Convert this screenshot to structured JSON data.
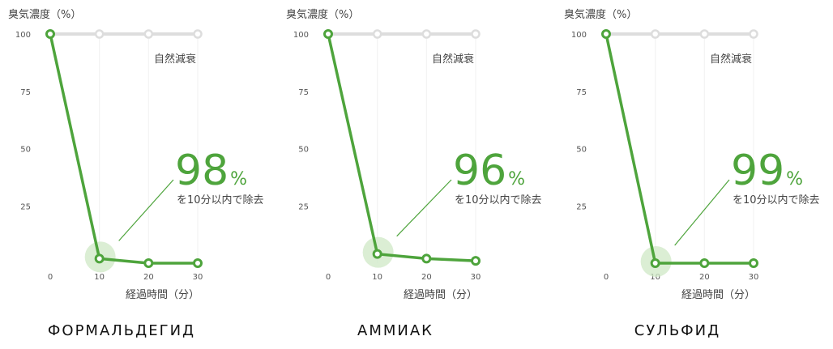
{
  "colors": {
    "accent": "#4ea43c",
    "baseline": "#dddddd",
    "highlight": "#cfe8c6",
    "text": "#555555"
  },
  "chart_data": [
    {
      "type": "line",
      "title": "",
      "ylabel": "臭気濃度（%）",
      "xlabel": "経過時間（分）",
      "ylim": [
        0,
        100
      ],
      "xlim": [
        0,
        30
      ],
      "x_ticks": [
        0,
        10,
        20,
        30
      ],
      "y_ticks": [
        25,
        50,
        75,
        100
      ],
      "series": [
        {
          "name": "",
          "role": "treated",
          "x": [
            0,
            10,
            20,
            30
          ],
          "values": [
            100,
            2,
            0,
            0
          ]
        },
        {
          "name": "自然減衰",
          "role": "natural",
          "x": [
            0,
            10,
            20,
            30
          ],
          "values": [
            100,
            100,
            100,
            100
          ]
        }
      ],
      "annotation": {
        "value": "98",
        "unit": "%",
        "text": "を10分以内で除去",
        "point_index": 1
      },
      "caption": "ФОРМАЛЬДЕГИД"
    },
    {
      "type": "line",
      "title": "",
      "ylabel": "臭気濃度（%）",
      "xlabel": "経過時間（分）",
      "ylim": [
        0,
        100
      ],
      "xlim": [
        0,
        30
      ],
      "x_ticks": [
        0,
        10,
        20,
        30
      ],
      "y_ticks": [
        25,
        50,
        75,
        100
      ],
      "series": [
        {
          "name": "",
          "role": "treated",
          "x": [
            0,
            10,
            20,
            30
          ],
          "values": [
            100,
            4,
            2,
            1
          ]
        },
        {
          "name": "自然減衰",
          "role": "natural",
          "x": [
            0,
            10,
            20,
            30
          ],
          "values": [
            100,
            100,
            100,
            100
          ]
        }
      ],
      "annotation": {
        "value": "96",
        "unit": "%",
        "text": "を10分以内で除去",
        "point_index": 1
      },
      "caption": "АММИАК"
    },
    {
      "type": "line",
      "title": "",
      "ylabel": "臭気濃度（%）",
      "xlabel": "経過時間（分）",
      "ylim": [
        0,
        100
      ],
      "xlim": [
        0,
        30
      ],
      "x_ticks": [
        0,
        10,
        20,
        30
      ],
      "y_ticks": [
        25,
        50,
        75,
        100
      ],
      "series": [
        {
          "name": "",
          "role": "treated",
          "x": [
            0,
            10,
            20,
            30
          ],
          "values": [
            100,
            0,
            0,
            0
          ]
        },
        {
          "name": "自然減衰",
          "role": "natural",
          "x": [
            0,
            10,
            20,
            30
          ],
          "values": [
            100,
            100,
            100,
            100
          ]
        }
      ],
      "annotation": {
        "value": "99",
        "unit": "%",
        "text": "を10分以内で除去",
        "point_index": 1
      },
      "caption": "СУЛЬФИД"
    }
  ]
}
